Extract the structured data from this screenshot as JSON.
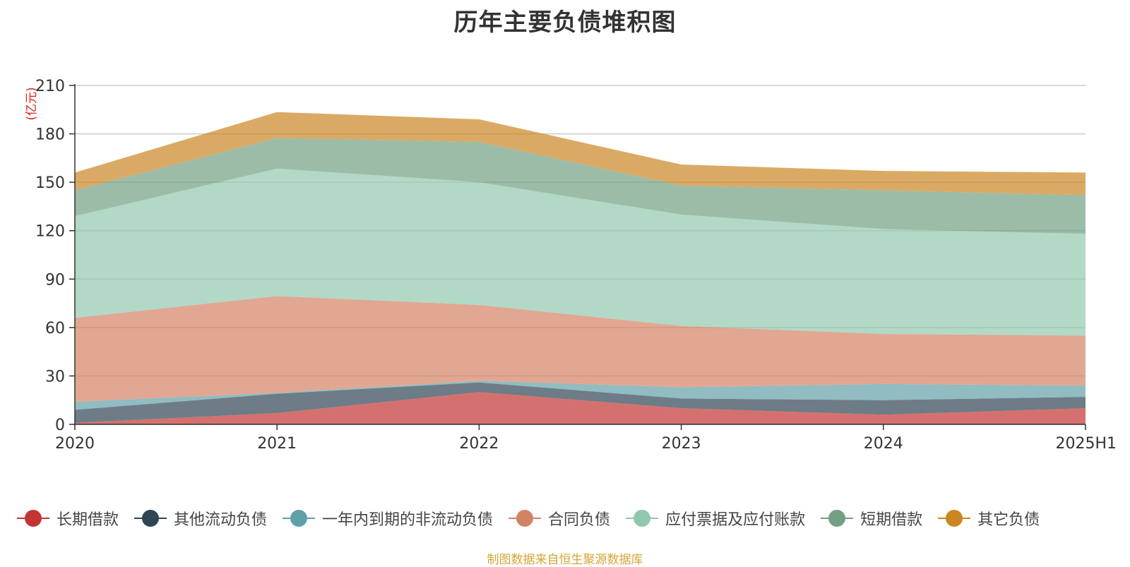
{
  "chart_data": {
    "type": "area",
    "stacked": true,
    "title": "历年主要负债堆积图",
    "unit_label": "(亿元)",
    "x": [
      "2020",
      "2021",
      "2022",
      "2023",
      "2024",
      "2025H1"
    ],
    "ylim": [
      0,
      210
    ],
    "yticks": [
      0,
      30,
      60,
      90,
      120,
      150,
      180,
      210
    ],
    "grid": true,
    "legend_position": "bottom",
    "series": [
      {
        "name": "长期借款",
        "color": "#c23531",
        "values": [
          1,
          7,
          20,
          10,
          6,
          10
        ]
      },
      {
        "name": "其他流动负债",
        "color": "#2f4554",
        "values": [
          8,
          12,
          6,
          6,
          9,
          7
        ]
      },
      {
        "name": "一年内到期的非流动负债",
        "color": "#61a0a8",
        "values": [
          5,
          0.5,
          1,
          7,
          10,
          7
        ]
      },
      {
        "name": "合同负债",
        "color": "#d48265",
        "values": [
          52,
          60,
          47,
          38,
          31,
          31
        ]
      },
      {
        "name": "应付票据及应付账款",
        "color": "#91c7ae",
        "values": [
          63,
          79,
          76,
          69,
          65,
          63
        ]
      },
      {
        "name": "短期借款",
        "color": "#749f83",
        "values": [
          16,
          19,
          25,
          18,
          24,
          24
        ]
      },
      {
        "name": "其它负债",
        "color": "#ca8622",
        "values": [
          11,
          16,
          14,
          13,
          12,
          14
        ]
      }
    ]
  },
  "footer": {
    "source_note": "制图数据来自恒生聚源数据库"
  }
}
